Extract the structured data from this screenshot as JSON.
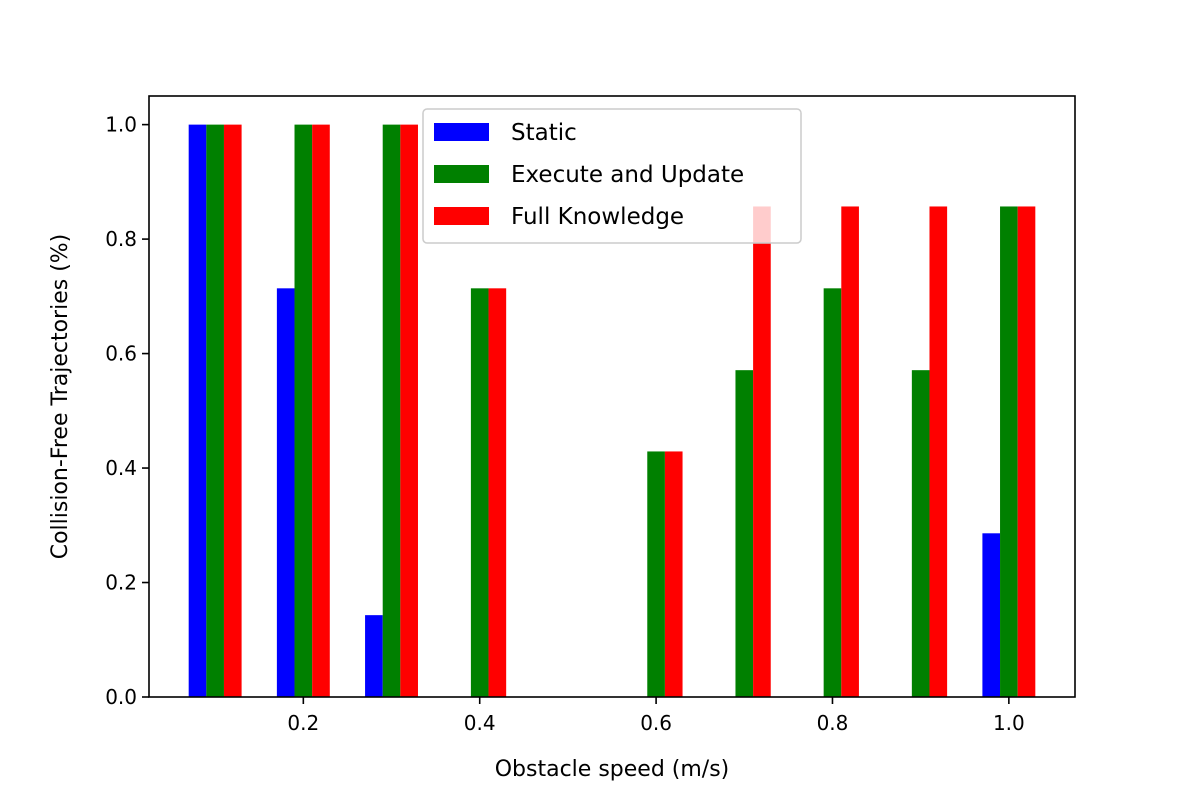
{
  "chart_data": {
    "type": "bar",
    "title": "",
    "xlabel": "Obstacle speed (m/s)",
    "ylabel": "Collision-Free Trajectories (%)",
    "x": [
      0.1,
      0.2,
      0.3,
      0.4,
      0.5,
      0.6,
      0.7,
      0.8,
      0.9,
      1.0
    ],
    "xlim": [
      0.025,
      1.075
    ],
    "ylim": [
      0,
      1.05
    ],
    "xticks": [
      "0.2",
      "0.4",
      "0.6",
      "0.8",
      "1.0"
    ],
    "yticks": [
      "0.0",
      "0.2",
      "0.4",
      "0.6",
      "0.8",
      "1.0"
    ],
    "bar_width": 0.02,
    "grid": false,
    "legend_position": "top-center",
    "series": [
      {
        "name": "Static",
        "color": "#0000ff",
        "values": [
          1.0,
          0.714,
          0.143,
          0.0,
          0.0,
          0.0,
          0.0,
          0.0,
          0.0,
          0.286
        ]
      },
      {
        "name": "Execute and Update",
        "color": "#008000",
        "values": [
          1.0,
          1.0,
          1.0,
          0.714,
          0.0,
          0.429,
          0.571,
          0.714,
          0.571,
          0.857
        ]
      },
      {
        "name": "Full Knowledge",
        "color": "#ff0000",
        "values": [
          1.0,
          1.0,
          1.0,
          0.714,
          0.0,
          0.429,
          0.857,
          0.857,
          0.857,
          0.857
        ]
      }
    ]
  }
}
